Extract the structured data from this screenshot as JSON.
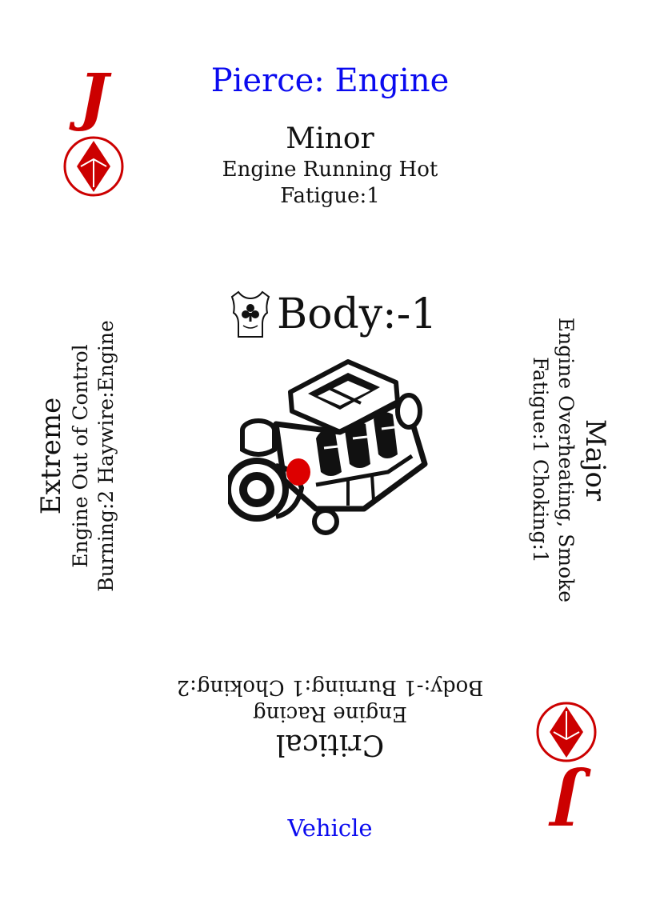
{
  "card": {
    "rank": "J",
    "suit_icon": "diamond-icon",
    "title": "Pierce: Engine",
    "footer": "Vehicle",
    "colors": {
      "accent_red": "#cc0000",
      "title_blue": "#0a0aef",
      "ink": "#111111"
    }
  },
  "minor": {
    "severity": "Minor",
    "effect": "Engine Running Hot",
    "penalty": "Fatigue:1"
  },
  "major": {
    "severity": "Major",
    "effect": "Engine Overheating, Smoke",
    "penalty": "Fatigue:1 Choking:1"
  },
  "critical": {
    "severity": "Critical",
    "effect": "Engine Racing",
    "penalty": "Body:-1 Burning:1 Choking:2"
  },
  "extreme": {
    "severity": "Extreme",
    "effect": "Engine Out of Control",
    "penalty": "Burning:2 Haywire:Engine"
  },
  "body_stat": {
    "icon": "torso-clubs-icon",
    "label": "Body:-1"
  },
  "art": {
    "icon": "engine-icon",
    "marker_color": "#dd0000"
  }
}
